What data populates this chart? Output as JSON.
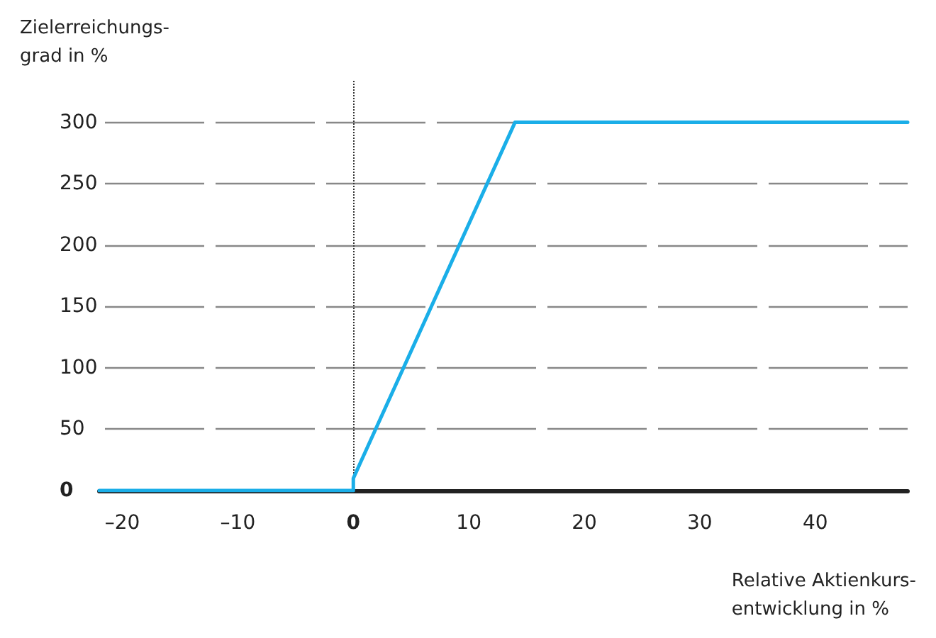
{
  "chart_data": {
    "type": "line",
    "ylabel": "Zielerreichungs-\ngrad in %",
    "xlabel": "Relative Aktienkurs-\nentwicklung in %",
    "x": [
      -22,
      0,
      0,
      14,
      48
    ],
    "series": [
      {
        "color": "#1aaee8",
        "values": [
          0,
          0,
          10,
          300,
          300
        ]
      }
    ],
    "xlim": [
      -22,
      48
    ],
    "ylim": [
      0,
      335
    ],
    "xticks": [
      {
        "value": -20,
        "label": "–20"
      },
      {
        "value": -10,
        "label": "–10"
      },
      0,
      10,
      20,
      30,
      40
    ],
    "yticks": [
      0,
      50,
      100,
      150,
      200,
      250,
      300
    ],
    "grid": "y",
    "marker": "none",
    "line_style": "solid",
    "ref_lines": [
      {
        "axis": "x",
        "value": 0,
        "label": null,
        "line_style": "dotted",
        "color": "#333333"
      }
    ]
  }
}
